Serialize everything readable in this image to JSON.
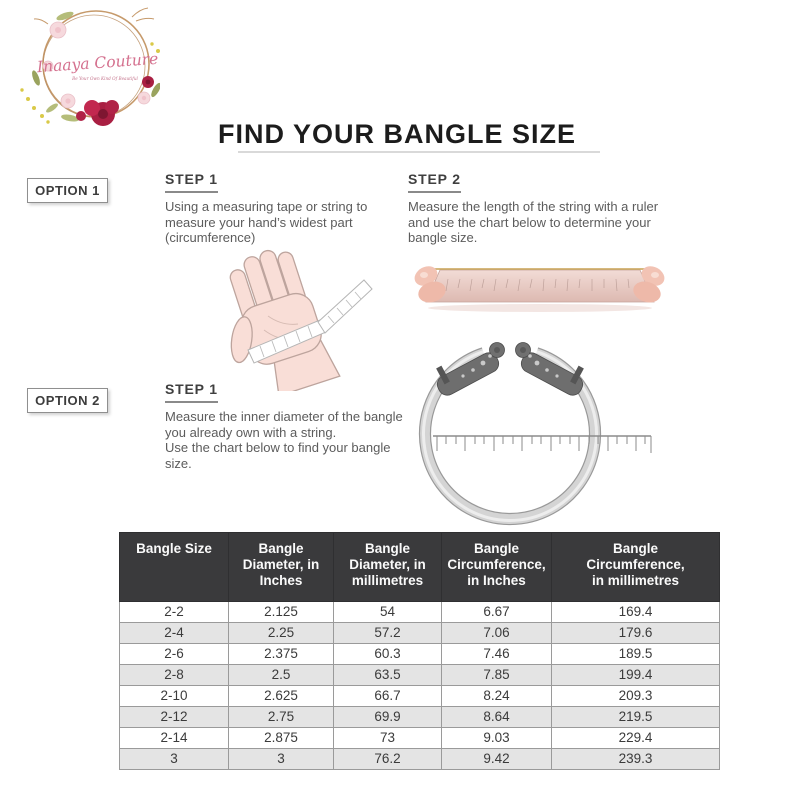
{
  "brand": {
    "name": "Inaaya Couture",
    "tagline": "Be Your Own Kind Of Beautiful"
  },
  "title": "FIND YOUR BANGLE SIZE",
  "option1": {
    "label": "OPTION 1",
    "step1": {
      "heading": "STEP 1",
      "text": "Using a measuring tape or string to\nmeasure your hand’s widest part\n(circumference)"
    },
    "step2": {
      "heading": "STEP 2",
      "text": "Measure the length of the string with a ruler\nand use the chart below to determine your\nbangle size."
    }
  },
  "option2": {
    "label": "OPTION 2",
    "step1": {
      "heading": "STEP 1",
      "text": "Measure the inner diameter of the bangle\nyou already own with a string.\nUse the chart below to find your bangle\nsize."
    }
  },
  "illustrations": {
    "hand": "hand-with-measuring-tape",
    "ruler": "hands-stretching-string-over-ruler",
    "bangle": "bangle-with-inner-diameter-ruler"
  },
  "size_chart": {
    "headers": [
      "Bangle Size",
      "Bangle\nDiameter, in\nInches",
      "Bangle\nDiameter, in\nmillimetres",
      "Bangle\nCircumference,\nin Inches",
      "Bangle\nCircumference,\nin millimetres"
    ],
    "rows": [
      [
        "2-2",
        "2.125",
        "54",
        "6.67",
        "169.4"
      ],
      [
        "2-4",
        "2.25",
        "57.2",
        "7.06",
        "179.6"
      ],
      [
        "2-6",
        "2.375",
        "60.3",
        "7.46",
        "189.5"
      ],
      [
        "2-8",
        "2.5",
        "63.5",
        "7.85",
        "199.4"
      ],
      [
        "2-10",
        "2.625",
        "66.7",
        "8.24",
        "209.3"
      ],
      [
        "2-12",
        "2.75",
        "69.9",
        "8.64",
        "219.5"
      ],
      [
        "2-14",
        "2.875",
        "73",
        "9.03",
        "229.4"
      ],
      [
        "3",
        "3",
        "76.2",
        "9.42",
        "239.3"
      ]
    ]
  },
  "colors": {
    "header_bg": "#3a3a3c",
    "header_text": "#fafafa",
    "row_alt": "#e4e4e4",
    "table_border": "#9a9a9a",
    "accent_pink": "#d4708e",
    "flower_red": "#a91f42",
    "body_text": "#5c5c5c",
    "heading_text": "#3f3f3f"
  }
}
